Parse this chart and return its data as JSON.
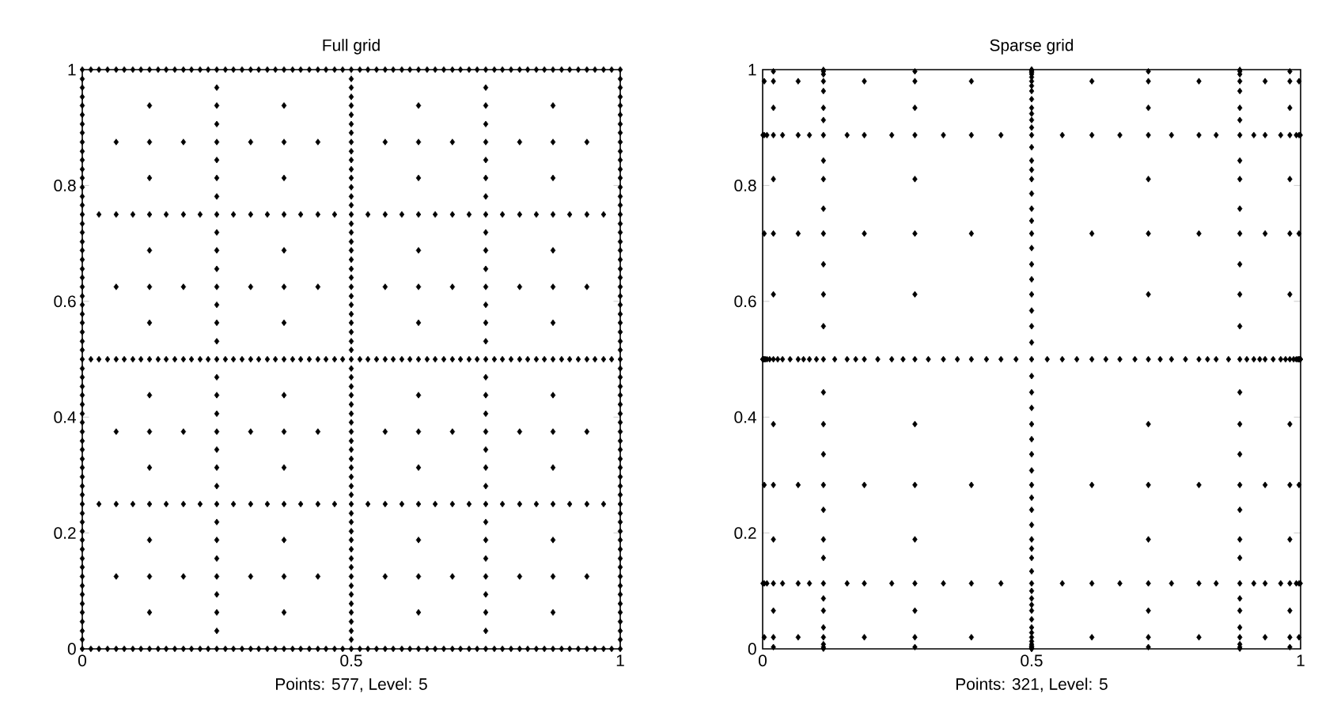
{
  "chart_data": [
    {
      "type": "scatter",
      "title": "Full grid",
      "xlabel": "Points: 577, Level: 5",
      "xlim": [
        0,
        1
      ],
      "ylim": [
        0,
        1
      ],
      "xticks": [
        0,
        0.5,
        1
      ],
      "yticks": [
        0,
        0.2,
        0.4,
        0.6,
        0.8,
        1
      ],
      "marker": "diamond",
      "series": [
        {
          "color": "#000000",
          "x": [
            0,
            0,
            0,
            0,
            0,
            0,
            0,
            0,
            0,
            0,
            0,
            0,
            0,
            0,
            0,
            0,
            0,
            0,
            0,
            0,
            0,
            0,
            0,
            0,
            0,
            0,
            0,
            0,
            0,
            0,
            0,
            0,
            0,
            0,
            0,
            0,
            0,
            0,
            0,
            0,
            0,
            0,
            0,
            0,
            0,
            0,
            0,
            0,
            0,
            0,
            0,
            0,
            0,
            0,
            0,
            0,
            0,
            0,
            0,
            0,
            0,
            0,
            0,
            0,
            0,
            0.016,
            0.016,
            0.016,
            0.031,
            0.031,
            0.031,
            0.031,
            0.031,
            0.047,
            0.047,
            0.047,
            0.063,
            0.063,
            0.063,
            0.063,
            0.063,
            0.063,
            0.063,
            0.063,
            0.063,
            0.078,
            0.078,
            0.078,
            0.094,
            0.094,
            0.094,
            0.094,
            0.094,
            0.109,
            0.109,
            0.109,
            0.125,
            0.125,
            0.125,
            0.125,
            0.125,
            0.125,
            0.125,
            0.125,
            0.125,
            0.125,
            0.125,
            0.125,
            0.125,
            0.125,
            0.125,
            0.125,
            0.125,
            0.141,
            0.141,
            0.141,
            0.156,
            0.156,
            0.156,
            0.156,
            0.156,
            0.172,
            0.172,
            0.172,
            0.188,
            0.188,
            0.188,
            0.188,
            0.188,
            0.188,
            0.188,
            0.188,
            0.188,
            0.203,
            0.203,
            0.203,
            0.219,
            0.219,
            0.219,
            0.219,
            0.219,
            0.234,
            0.234,
            0.234,
            0.25,
            0.25,
            0.25,
            0.25,
            0.25,
            0.25,
            0.25,
            0.25,
            0.25,
            0.25,
            0.25,
            0.25,
            0.25,
            0.25,
            0.25,
            0.25,
            0.25,
            0.25,
            0.25,
            0.25,
            0.25,
            0.25,
            0.25,
            0.25,
            0.25,
            0.25,
            0.25,
            0.25,
            0.25,
            0.25,
            0.25,
            0.25,
            0.25,
            0.266,
            0.266,
            0.266,
            0.281,
            0.281,
            0.281,
            0.281,
            0.281,
            0.297,
            0.297,
            0.297,
            0.313,
            0.313,
            0.313,
            0.313,
            0.313,
            0.313,
            0.313,
            0.313,
            0.313,
            0.328,
            0.328,
            0.328,
            0.344,
            0.344,
            0.344,
            0.344,
            0.344,
            0.359,
            0.359,
            0.359,
            0.375,
            0.375,
            0.375,
            0.375,
            0.375,
            0.375,
            0.375,
            0.375,
            0.375,
            0.375,
            0.375,
            0.375,
            0.375,
            0.375,
            0.375,
            0.375,
            0.375,
            0.391,
            0.391,
            0.391,
            0.406,
            0.406,
            0.406,
            0.406,
            0.406,
            0.422,
            0.422,
            0.422,
            0.438,
            0.438,
            0.438,
            0.438,
            0.438,
            0.438,
            0.438,
            0.438,
            0.438,
            0.453,
            0.453,
            0.453,
            0.469,
            0.469,
            0.469,
            0.469,
            0.469,
            0.484,
            0.484,
            0.484,
            0.5,
            0.5,
            0.5,
            0.5,
            0.5,
            0.5,
            0.5,
            0.5,
            0.5,
            0.5,
            0.5,
            0.5,
            0.5,
            0.5,
            0.5,
            0.5,
            0.5,
            0.5,
            0.5,
            0.5,
            0.5,
            0.5,
            0.5,
            0.5,
            0.5,
            0.5,
            0.5,
            0.5,
            0.5,
            0.5,
            0.5,
            0.5,
            0.5,
            0.5,
            0.5,
            0.5,
            0.5,
            0.5,
            0.5,
            0.5,
            0.5,
            0.5,
            0.5,
            0.5,
            0.5,
            0.5,
            0.5,
            0.5,
            0.5,
            0.5,
            0.5,
            0.5,
            0.5,
            0.5,
            0.5,
            0.5,
            0.5,
            0.5,
            0.5,
            0.5,
            0.5,
            0.5,
            0.5,
            0.5,
            0.5,
            0.516,
            0.516,
            0.516,
            0.531,
            0.531,
            0.531,
            0.531,
            0.531,
            0.547,
            0.547,
            0.547,
            0.563,
            0.563,
            0.563,
            0.563,
            0.563,
            0.563,
            0.563,
            0.563,
            0.563,
            0.578,
            0.578,
            0.578,
            0.594,
            0.594,
            0.594,
            0.594,
            0.594,
            0.609,
            0.609,
            0.609,
            0.625,
            0.625,
            0.625,
            0.625,
            0.625,
            0.625,
            0.625,
            0.625,
            0.625,
            0.625,
            0.625,
            0.625,
            0.625,
            0.625,
            0.625,
            0.625,
            0.625,
            0.641,
            0.641,
            0.641,
            0.656,
            0.656,
            0.656,
            0.656,
            0.656,
            0.672,
            0.672,
            0.672,
            0.688,
            0.688,
            0.688,
            0.688,
            0.688,
            0.688,
            0.688,
            0.688,
            0.688,
            0.703,
            0.703,
            0.703,
            0.719,
            0.719,
            0.719,
            0.719,
            0.719,
            0.734,
            0.734,
            0.734,
            0.75,
            0.75,
            0.75,
            0.75,
            0.75,
            0.75,
            0.75,
            0.75,
            0.75,
            0.75,
            0.75,
            0.75,
            0.75,
            0.75,
            0.75,
            0.75,
            0.75,
            0.75,
            0.75,
            0.75,
            0.75,
            0.75,
            0.75,
            0.75,
            0.75,
            0.75,
            0.75,
            0.75,
            0.75,
            0.75,
            0.75,
            0.75,
            0.75,
            0.766,
            0.766,
            0.766,
            0.781,
            0.781,
            0.781,
            0.781,
            0.781,
            0.797,
            0.797,
            0.797,
            0.813,
            0.813,
            0.813,
            0.813,
            0.813,
            0.813,
            0.813,
            0.813,
            0.813,
            0.828,
            0.828,
            0.828,
            0.844,
            0.844,
            0.844,
            0.844,
            0.844,
            0.859,
            0.859,
            0.859,
            0.875,
            0.875,
            0.875,
            0.875,
            0.875,
            0.875,
            0.875,
            0.875,
            0.875,
            0.875,
            0.875,
            0.875,
            0.875,
            0.875,
            0.875,
            0.875,
            0.875,
            0.891,
            0.891,
            0.891,
            0.906,
            0.906,
            0.906,
            0.906,
            0.906,
            0.922,
            0.922,
            0.922,
            0.938,
            0.938,
            0.938,
            0.938,
            0.938,
            0.938,
            0.938,
            0.938,
            0.938,
            0.953,
            0.953,
            0.953,
            0.969,
            0.969,
            0.969,
            0.969,
            0.969,
            0.984,
            0.984,
            0.984,
            1,
            1,
            1,
            1,
            1,
            1,
            1,
            1,
            1,
            1,
            1,
            1,
            1,
            1,
            1,
            1,
            1,
            1,
            1,
            1,
            1,
            1,
            1,
            1,
            1,
            1,
            1,
            1,
            1,
            1,
            1,
            1,
            1,
            1,
            1,
            1,
            1,
            1,
            1,
            1,
            1,
            1,
            1,
            1,
            1,
            1,
            1,
            1,
            1,
            1,
            1,
            1,
            1,
            1,
            1,
            1,
            1,
            1,
            1,
            1,
            1,
            1,
            1,
            1,
            1
          ],
          "values": [
            0,
            0.016,
            0.031,
            0.047,
            0.063,
            0.078,
            0.094,
            0.109,
            0.125,
            0.141,
            0.156,
            0.172,
            0.188,
            0.203,
            0.219,
            0.234,
            0.25,
            0.266,
            0.281,
            0.297,
            0.313,
            0.328,
            0.344,
            0.359,
            0.375,
            0.391,
            0.406,
            0.422,
            0.438,
            0.453,
            0.469,
            0.484,
            0.5,
            0.516,
            0.531,
            0.547,
            0.563,
            0.578,
            0.594,
            0.609,
            0.625,
            0.641,
            0.656,
            0.672,
            0.688,
            0.703,
            0.719,
            0.734,
            0.75,
            0.766,
            0.781,
            0.797,
            0.813,
            0.828,
            0.844,
            0.859,
            0.875,
            0.891,
            0.906,
            0.922,
            0.938,
            0.953,
            0.969,
            0.984,
            1,
            0,
            0.5,
            1,
            0,
            0.25,
            0.5,
            0.75,
            1,
            0,
            0.5,
            1,
            0,
            0.125,
            0.25,
            0.375,
            0.5,
            0.625,
            0.75,
            0.875,
            1,
            0,
            0.5,
            1,
            0,
            0.25,
            0.5,
            0.75,
            1,
            0,
            0.5,
            1,
            0,
            0.063,
            0.125,
            0.188,
            0.25,
            0.313,
            0.375,
            0.438,
            0.5,
            0.563,
            0.625,
            0.688,
            0.75,
            0.813,
            0.875,
            0.938,
            1,
            0,
            0.5,
            1,
            0,
            0.25,
            0.5,
            0.75,
            1,
            0,
            0.5,
            1,
            0,
            0.125,
            0.25,
            0.375,
            0.5,
            0.625,
            0.75,
            0.875,
            1,
            0,
            0.5,
            1,
            0,
            0.25,
            0.5,
            0.75,
            1,
            0,
            0.5,
            1,
            0,
            0.031,
            0.063,
            0.094,
            0.125,
            0.156,
            0.188,
            0.219,
            0.25,
            0.281,
            0.313,
            0.344,
            0.375,
            0.406,
            0.438,
            0.469,
            0.5,
            0.531,
            0.563,
            0.594,
            0.625,
            0.656,
            0.688,
            0.719,
            0.75,
            0.781,
            0.813,
            0.844,
            0.875,
            0.906,
            0.938,
            0.969,
            1,
            0,
            0.5,
            1,
            0,
            0.25,
            0.5,
            0.75,
            1,
            0,
            0.5,
            1,
            0,
            0.125,
            0.25,
            0.375,
            0.5,
            0.625,
            0.75,
            0.875,
            1,
            0,
            0.5,
            1,
            0,
            0.25,
            0.5,
            0.75,
            1,
            0,
            0.5,
            1,
            0,
            0.063,
            0.125,
            0.188,
            0.25,
            0.313,
            0.375,
            0.438,
            0.5,
            0.563,
            0.625,
            0.688,
            0.75,
            0.813,
            0.875,
            0.938,
            1,
            0,
            0.5,
            1,
            0,
            0.25,
            0.5,
            0.75,
            1,
            0,
            0.5,
            1,
            0,
            0.125,
            0.25,
            0.375,
            0.5,
            0.625,
            0.75,
            0.875,
            1,
            0,
            0.5,
            1,
            0,
            0.25,
            0.5,
            0.75,
            1,
            0,
            0.5,
            1,
            0,
            0.016,
            0.031,
            0.047,
            0.063,
            0.078,
            0.094,
            0.109,
            0.125,
            0.141,
            0.156,
            0.172,
            0.188,
            0.203,
            0.219,
            0.234,
            0.25,
            0.266,
            0.281,
            0.297,
            0.313,
            0.328,
            0.344,
            0.359,
            0.375,
            0.391,
            0.406,
            0.422,
            0.438,
            0.453,
            0.469,
            0.484,
            0.5,
            0.516,
            0.531,
            0.547,
            0.563,
            0.578,
            0.594,
            0.609,
            0.625,
            0.641,
            0.656,
            0.672,
            0.688,
            0.703,
            0.719,
            0.734,
            0.75,
            0.766,
            0.781,
            0.797,
            0.813,
            0.828,
            0.844,
            0.859,
            0.875,
            0.891,
            0.906,
            0.922,
            0.938,
            0.953,
            0.969,
            0.984,
            1,
            0,
            0.5,
            1,
            0,
            0.25,
            0.5,
            0.75,
            1,
            0,
            0.5,
            1,
            0,
            0.125,
            0.25,
            0.375,
            0.5,
            0.625,
            0.75,
            0.875,
            1,
            0,
            0.5,
            1,
            0,
            0.25,
            0.5,
            0.75,
            1,
            0,
            0.5,
            1,
            0,
            0.063,
            0.125,
            0.188,
            0.25,
            0.313,
            0.375,
            0.438,
            0.5,
            0.563,
            0.625,
            0.688,
            0.75,
            0.813,
            0.875,
            0.938,
            1,
            0,
            0.5,
            1,
            0,
            0.25,
            0.5,
            0.75,
            1,
            0,
            0.5,
            1,
            0,
            0.125,
            0.25,
            0.375,
            0.5,
            0.625,
            0.75,
            0.875,
            1,
            0,
            0.5,
            1,
            0,
            0.25,
            0.5,
            0.75,
            1,
            0,
            0.5,
            1,
            0,
            0.031,
            0.063,
            0.094,
            0.125,
            0.156,
            0.188,
            0.219,
            0.25,
            0.281,
            0.313,
            0.344,
            0.375,
            0.406,
            0.438,
            0.469,
            0.5,
            0.531,
            0.563,
            0.594,
            0.625,
            0.656,
            0.688,
            0.719,
            0.75,
            0.781,
            0.813,
            0.844,
            0.875,
            0.906,
            0.938,
            0.969,
            1,
            0,
            0.5,
            1,
            0,
            0.25,
            0.5,
            0.75,
            1,
            0,
            0.5,
            1,
            0,
            0.125,
            0.25,
            0.375,
            0.5,
            0.625,
            0.75,
            0.875,
            1,
            0,
            0.5,
            1,
            0,
            0.25,
            0.5,
            0.75,
            1,
            0,
            0.5,
            1,
            0,
            0.063,
            0.125,
            0.188,
            0.25,
            0.313,
            0.375,
            0.438,
            0.5,
            0.563,
            0.625,
            0.688,
            0.75,
            0.813,
            0.875,
            0.938,
            1,
            0,
            0.5,
            1,
            0,
            0.25,
            0.5,
            0.75,
            1,
            0,
            0.5,
            1,
            0,
            0.125,
            0.25,
            0.375,
            0.5,
            0.625,
            0.75,
            0.875,
            1,
            0,
            0.5,
            1,
            0,
            0.25,
            0.5,
            0.75,
            1,
            0,
            0.5,
            1,
            0,
            0.016,
            0.031,
            0.047,
            0.063,
            0.078,
            0.094,
            0.109,
            0.125,
            0.141,
            0.156,
            0.172,
            0.188,
            0.203,
            0.219,
            0.234,
            0.25,
            0.266,
            0.281,
            0.297,
            0.313,
            0.328,
            0.344,
            0.359,
            0.375,
            0.391,
            0.406,
            0.422,
            0.438,
            0.453,
            0.469,
            0.484,
            0.5,
            0.516,
            0.531,
            0.547,
            0.563,
            0.578,
            0.594,
            0.609,
            0.625,
            0.641,
            0.656,
            0.672,
            0.688,
            0.703,
            0.719,
            0.734,
            0.75,
            0.766,
            0.781,
            0.797,
            0.813,
            0.828,
            0.844,
            0.859,
            0.875,
            0.891,
            0.906,
            0.922,
            0.938,
            0.953,
            0.969,
            0.984,
            1
          ]
        }
      ]
    },
    {
      "type": "scatter",
      "title": "Sparse grid",
      "xlabel": "Points: 321, Level: 5",
      "xlim": [
        0,
        1
      ],
      "ylim": [
        0,
        1
      ],
      "xticks": [
        0,
        0.5,
        1
      ],
      "yticks": [
        0,
        0.2,
        0.4,
        0.6,
        0.8,
        1
      ],
      "marker": "diamond",
      "series": [
        {
          "color": "#000000",
          "x": [
            0.0001,
            0.0005,
            0.0005,
            0.0005,
            0.0015,
            0.003,
            0.003,
            0.003,
            0.003,
            0.003,
            0.003,
            0.003,
            0.005,
            0.008,
            0.008,
            0.008,
            0.013,
            0.02,
            0.02,
            0.02,
            0.02,
            0.02,
            0.02,
            0.02,
            0.02,
            0.02,
            0.02,
            0.02,
            0.02,
            0.02,
            0.02,
            0.02,
            0.028,
            0.037,
            0.037,
            0.037,
            0.051,
            0.066,
            0.066,
            0.066,
            0.066,
            0.066,
            0.066,
            0.066,
            0.076,
            0.087,
            0.087,
            0.087,
            0.1,
            0.113,
            0.113,
            0.113,
            0.113,
            0.113,
            0.113,
            0.113,
            0.113,
            0.113,
            0.113,
            0.113,
            0.113,
            0.113,
            0.113,
            0.113,
            0.113,
            0.113,
            0.113,
            0.113,
            0.113,
            0.113,
            0.113,
            0.113,
            0.113,
            0.113,
            0.113,
            0.113,
            0.113,
            0.113,
            0.113,
            0.113,
            0.134,
            0.157,
            0.157,
            0.157,
            0.173,
            0.189,
            0.189,
            0.189,
            0.189,
            0.189,
            0.189,
            0.189,
            0.214,
            0.24,
            0.24,
            0.24,
            0.261,
            0.283,
            0.283,
            0.283,
            0.283,
            0.283,
            0.283,
            0.283,
            0.283,
            0.283,
            0.283,
            0.283,
            0.283,
            0.283,
            0.283,
            0.283,
            0.308,
            0.336,
            0.336,
            0.336,
            0.362,
            0.388,
            0.388,
            0.388,
            0.388,
            0.388,
            0.388,
            0.388,
            0.416,
            0.443,
            0.443,
            0.443,
            0.471,
            0.5,
            0.5,
            0.5,
            0.5,
            0.5,
            0.5,
            0.5,
            0.5,
            0.5,
            0.5,
            0.5,
            0.5,
            0.5,
            0.5,
            0.5,
            0.5,
            0.5,
            0.5,
            0.5,
            0.5,
            0.5,
            0.5,
            0.5,
            0.5,
            0.5,
            0.5,
            0.5,
            0.5,
            0.5,
            0.5,
            0.5,
            0.5,
            0.5,
            0.5,
            0.5,
            0.5,
            0.5,
            0.5,
            0.5,
            0.5,
            0.5,
            0.5,
            0.5,
            0.5,
            0.5,
            0.5,
            0.5,
            0.5,
            0.5,
            0.5,
            0.5,
            0.5,
            0.5,
            0.5,
            0.5,
            0.5,
            0.5,
            0.5,
            0.5,
            0.5,
            0.5,
            0.5,
            0.5,
            0.529,
            0.557,
            0.557,
            0.557,
            0.584,
            0.612,
            0.612,
            0.612,
            0.612,
            0.612,
            0.612,
            0.612,
            0.638,
            0.664,
            0.664,
            0.664,
            0.692,
            0.717,
            0.717,
            0.717,
            0.717,
            0.717,
            0.717,
            0.717,
            0.717,
            0.717,
            0.717,
            0.717,
            0.717,
            0.717,
            0.717,
            0.717,
            0.739,
            0.76,
            0.76,
            0.76,
            0.786,
            0.811,
            0.811,
            0.811,
            0.811,
            0.811,
            0.811,
            0.811,
            0.827,
            0.843,
            0.843,
            0.843,
            0.866,
            0.887,
            0.887,
            0.887,
            0.887,
            0.887,
            0.887,
            0.887,
            0.887,
            0.887,
            0.887,
            0.887,
            0.887,
            0.887,
            0.887,
            0.887,
            0.887,
            0.887,
            0.887,
            0.887,
            0.887,
            0.887,
            0.887,
            0.887,
            0.887,
            0.887,
            0.887,
            0.887,
            0.887,
            0.887,
            0.887,
            0.887,
            0.9,
            0.913,
            0.913,
            0.913,
            0.924,
            0.934,
            0.934,
            0.934,
            0.934,
            0.934,
            0.934,
            0.934,
            0.949,
            0.963,
            0.963,
            0.963,
            0.972,
            0.98,
            0.98,
            0.98,
            0.98,
            0.98,
            0.98,
            0.98,
            0.98,
            0.98,
            0.98,
            0.98,
            0.98,
            0.98,
            0.98,
            0.98,
            0.987,
            0.992,
            0.992,
            0.992,
            0.995,
            0.997,
            0.997,
            0.997,
            0.997,
            0.997,
            0.997,
            0.997,
            0.9985,
            0.9995,
            0.9995,
            0.9995,
            0.9999
          ],
          "values": [
            0.5,
            0.113,
            0.5,
            0.887,
            0.5,
            0.02,
            0.113,
            0.283,
            0.5,
            0.717,
            0.887,
            0.98,
            0.5,
            0.113,
            0.5,
            0.887,
            0.5,
            0.003,
            0.02,
            0.066,
            0.113,
            0.189,
            0.283,
            0.388,
            0.5,
            0.612,
            0.717,
            0.811,
            0.887,
            0.934,
            0.98,
            0.997,
            0.5,
            0.113,
            0.5,
            0.887,
            0.5,
            0.02,
            0.113,
            0.283,
            0.5,
            0.717,
            0.887,
            0.98,
            0.5,
            0.113,
            0.5,
            0.887,
            0.5,
            0.0005,
            0.003,
            0.008,
            0.02,
            0.037,
            0.066,
            0.087,
            0.113,
            0.157,
            0.189,
            0.24,
            0.283,
            0.336,
            0.388,
            0.443,
            0.5,
            0.557,
            0.612,
            0.664,
            0.717,
            0.76,
            0.811,
            0.843,
            0.887,
            0.913,
            0.934,
            0.963,
            0.98,
            0.992,
            0.997,
            0.9995,
            0.5,
            0.113,
            0.5,
            0.887,
            0.5,
            0.02,
            0.113,
            0.283,
            0.5,
            0.717,
            0.887,
            0.98,
            0.5,
            0.113,
            0.5,
            0.887,
            0.5,
            0.003,
            0.02,
            0.066,
            0.113,
            0.189,
            0.283,
            0.388,
            0.5,
            0.612,
            0.717,
            0.811,
            0.887,
            0.934,
            0.98,
            0.997,
            0.5,
            0.113,
            0.5,
            0.887,
            0.5,
            0.02,
            0.113,
            0.283,
            0.5,
            0.717,
            0.887,
            0.98,
            0.5,
            0.113,
            0.5,
            0.887,
            0.5,
            0.0001,
            0.0005,
            0.0015,
            0.003,
            0.005,
            0.008,
            0.013,
            0.02,
            0.028,
            0.037,
            0.051,
            0.066,
            0.076,
            0.087,
            0.1,
            0.113,
            0.134,
            0.157,
            0.173,
            0.189,
            0.214,
            0.24,
            0.261,
            0.283,
            0.308,
            0.336,
            0.362,
            0.388,
            0.416,
            0.443,
            0.471,
            0.5,
            0.529,
            0.557,
            0.584,
            0.612,
            0.638,
            0.664,
            0.692,
            0.717,
            0.739,
            0.76,
            0.786,
            0.811,
            0.827,
            0.843,
            0.866,
            0.887,
            0.9,
            0.913,
            0.924,
            0.934,
            0.949,
            0.963,
            0.972,
            0.98,
            0.987,
            0.992,
            0.995,
            0.997,
            0.9985,
            0.9995,
            0.9999,
            0.5,
            0.113,
            0.5,
            0.887,
            0.5,
            0.02,
            0.113,
            0.283,
            0.5,
            0.717,
            0.887,
            0.98,
            0.5,
            0.113,
            0.5,
            0.887,
            0.5,
            0.003,
            0.02,
            0.066,
            0.113,
            0.189,
            0.283,
            0.388,
            0.5,
            0.612,
            0.717,
            0.811,
            0.887,
            0.934,
            0.98,
            0.997,
            0.5,
            0.113,
            0.5,
            0.887,
            0.5,
            0.02,
            0.113,
            0.283,
            0.5,
            0.717,
            0.887,
            0.98,
            0.5,
            0.113,
            0.5,
            0.887,
            0.5,
            0.0005,
            0.003,
            0.008,
            0.02,
            0.037,
            0.066,
            0.087,
            0.113,
            0.157,
            0.189,
            0.24,
            0.283,
            0.336,
            0.388,
            0.443,
            0.5,
            0.557,
            0.612,
            0.664,
            0.717,
            0.76,
            0.811,
            0.843,
            0.887,
            0.913,
            0.934,
            0.963,
            0.98,
            0.992,
            0.997,
            0.9995,
            0.5,
            0.113,
            0.5,
            0.887,
            0.5,
            0.02,
            0.113,
            0.283,
            0.5,
            0.717,
            0.887,
            0.98,
            0.5,
            0.113,
            0.5,
            0.887,
            0.5,
            0.003,
            0.02,
            0.066,
            0.113,
            0.189,
            0.283,
            0.388,
            0.5,
            0.612,
            0.717,
            0.811,
            0.887,
            0.934,
            0.98,
            0.997,
            0.5,
            0.113,
            0.5,
            0.887,
            0.5,
            0.02,
            0.113,
            0.283,
            0.5,
            0.717,
            0.887,
            0.98,
            0.5,
            0.113,
            0.5,
            0.887,
            0.5
          ]
        }
      ]
    }
  ]
}
